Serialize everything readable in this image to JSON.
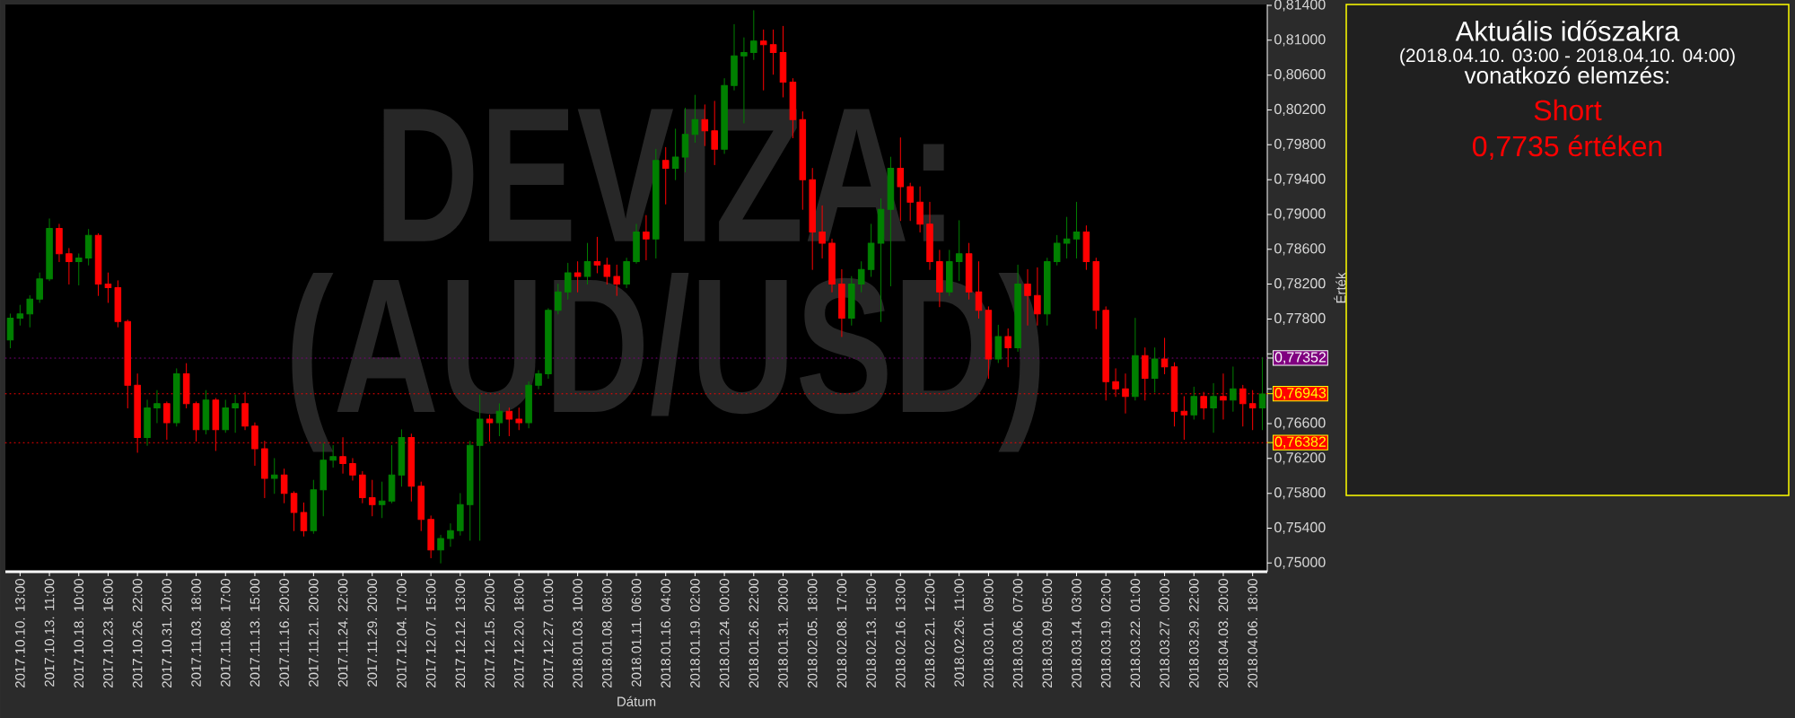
{
  "chart_data": [
    {
      "type": "candlestick",
      "title": "DEVIZA: (AUD/USD)",
      "xlabel": "Dátum",
      "ylabel": "Érték",
      "categories": [
        null,
        "2017.10.10. 13:00",
        null,
        null,
        "2017.10.13. 11:00",
        null,
        null,
        "2017.10.18. 10:00",
        null,
        null,
        "2017.10.23. 16:00",
        null,
        null,
        "2017.10.26. 22:00",
        null,
        null,
        "2017.10.31. 20:00",
        null,
        null,
        "2017.11.03. 18:00",
        null,
        null,
        "2017.11.08. 17:00",
        null,
        null,
        "2017.11.13. 15:00",
        null,
        null,
        "2017.11.16. 20:00",
        null,
        null,
        "2017.11.21. 20:00",
        null,
        null,
        "2017.11.24. 22:00",
        null,
        null,
        "2017.11.29. 20:00",
        null,
        null,
        "2017.12.04. 17:00",
        null,
        null,
        "2017.12.07. 15:00",
        null,
        null,
        "2017.12.12. 13:00",
        null,
        null,
        "2017.12.15. 20:00",
        null,
        null,
        "2017.12.20. 18:00",
        null,
        null,
        "2017.12.27. 01:00",
        null,
        null,
        "2018.01.03. 10:00",
        null,
        null,
        "2018.01.08. 08:00",
        null,
        null,
        "2018.01.11. 06:00",
        null,
        null,
        "2018.01.16. 04:00",
        null,
        null,
        "2018.01.19. 02:00",
        null,
        null,
        "2018.01.24. 00:00",
        null,
        null,
        "2018.01.26. 22:00",
        null,
        null,
        "2018.01.31. 20:00",
        null,
        null,
        "2018.02.05. 18:00",
        null,
        null,
        "2018.02.08. 17:00",
        null,
        null,
        "2018.02.13. 15:00",
        null,
        null,
        "2018.02.16. 13:00",
        null,
        null,
        "2018.02.21. 12:00",
        null,
        null,
        "2018.02.26. 11:00",
        null,
        null,
        "2018.03.01. 09:00",
        null,
        null,
        "2018.03.06. 07:00",
        null,
        null,
        "2018.03.09. 05:00",
        null,
        null,
        "2018.03.14. 03:00",
        null,
        null,
        "2018.03.19. 02:00",
        null,
        null,
        "2018.03.22. 01:00",
        null,
        null,
        "2018.03.27. 00:00",
        null,
        null,
        "2018.03.29. 22:00",
        null,
        null,
        "2018.04.03. 20:00",
        null,
        null,
        "2018.04.06. 18:00",
        null
      ],
      "ohlc": [
        [
          0.7756,
          0.7786,
          0.7747,
          0.7781
        ],
        [
          0.7781,
          0.7796,
          0.7773,
          0.7786
        ],
        [
          0.7786,
          0.7807,
          0.7771,
          0.7803
        ],
        [
          0.7803,
          0.7833,
          0.7799,
          0.7826
        ],
        [
          0.7826,
          0.7895,
          0.7824,
          0.7884
        ],
        [
          0.7884,
          0.7889,
          0.7846,
          0.7855
        ],
        [
          0.7855,
          0.7861,
          0.782,
          0.7846
        ],
        [
          0.7846,
          0.7855,
          0.7819,
          0.785
        ],
        [
          0.785,
          0.7883,
          0.7842,
          0.7876
        ],
        [
          0.7876,
          0.7878,
          0.7807,
          0.782
        ],
        [
          0.782,
          0.7833,
          0.7799,
          0.7816
        ],
        [
          0.7816,
          0.7824,
          0.7771,
          0.7777
        ],
        [
          0.7777,
          0.7779,
          0.7678,
          0.7704
        ],
        [
          0.7704,
          0.7717,
          0.7627,
          0.7644
        ],
        [
          0.7644,
          0.7687,
          0.7635,
          0.7678
        ],
        [
          0.7678,
          0.7698,
          0.7661,
          0.7683
        ],
        [
          0.7683,
          0.7685,
          0.7642,
          0.7661
        ],
        [
          0.7661,
          0.7723,
          0.7657,
          0.7717
        ],
        [
          0.7717,
          0.7729,
          0.7678,
          0.7683
        ],
        [
          0.7683,
          0.7685,
          0.764,
          0.7653
        ],
        [
          0.7653,
          0.7698,
          0.7648,
          0.7687
        ],
        [
          0.7687,
          0.7689,
          0.7629,
          0.7653
        ],
        [
          0.7653,
          0.7687,
          0.765,
          0.7678
        ],
        [
          0.7678,
          0.7693,
          0.765,
          0.7683
        ],
        [
          0.7683,
          0.7696,
          0.7653,
          0.7657
        ],
        [
          0.7657,
          0.7661,
          0.7612,
          0.7631
        ],
        [
          0.7631,
          0.764,
          0.7575,
          0.7597
        ],
        [
          0.7597,
          0.762,
          0.758,
          0.7601
        ],
        [
          0.7601,
          0.7608,
          0.7569,
          0.758
        ],
        [
          0.758,
          0.7582,
          0.7537,
          0.7558
        ],
        [
          0.7558,
          0.7569,
          0.7531,
          0.7537
        ],
        [
          0.7537,
          0.7595,
          0.7534,
          0.7584
        ],
        [
          0.7584,
          0.7637,
          0.7554,
          0.7618
        ],
        [
          0.7618,
          0.7635,
          0.761,
          0.7622
        ],
        [
          0.7622,
          0.7644,
          0.7603,
          0.7614
        ],
        [
          0.7614,
          0.762,
          0.7595,
          0.7601
        ],
        [
          0.7601,
          0.7605,
          0.7569,
          0.7575
        ],
        [
          0.7575,
          0.7595,
          0.7554,
          0.7567
        ],
        [
          0.7567,
          0.7593,
          0.7552,
          0.7571
        ],
        [
          0.7571,
          0.7635,
          0.7569,
          0.7601
        ],
        [
          0.7601,
          0.7653,
          0.7588,
          0.7644
        ],
        [
          0.7644,
          0.7648,
          0.7571,
          0.7588
        ],
        [
          0.7588,
          0.7593,
          0.7537,
          0.755
        ],
        [
          0.755,
          0.7554,
          0.7506,
          0.7515
        ],
        [
          0.7515,
          0.7532,
          0.75,
          0.7528
        ],
        [
          0.7528,
          0.7545,
          0.7519,
          0.7537
        ],
        [
          0.7537,
          0.758,
          0.7532,
          0.7567
        ],
        [
          0.7567,
          0.764,
          0.7526,
          0.7635
        ],
        [
          0.7635,
          0.7693,
          0.7526,
          0.7665
        ],
        [
          0.7665,
          0.767,
          0.764,
          0.7661
        ],
        [
          0.7661,
          0.7683,
          0.7646,
          0.7674
        ],
        [
          0.7674,
          0.7678,
          0.7646,
          0.7665
        ],
        [
          0.7665,
          0.7678,
          0.7653,
          0.7661
        ],
        [
          0.7661,
          0.7708,
          0.7655,
          0.7704
        ],
        [
          0.7704,
          0.7721,
          0.77,
          0.7717
        ],
        [
          0.7717,
          0.7792,
          0.7712,
          0.779
        ],
        [
          0.779,
          0.782,
          0.7786,
          0.7811
        ],
        [
          0.7811,
          0.7844,
          0.7803,
          0.7833
        ],
        [
          0.7833,
          0.7846,
          0.7811,
          0.7829
        ],
        [
          0.7829,
          0.7867,
          0.782,
          0.7846
        ],
        [
          0.7846,
          0.7874,
          0.7833,
          0.7842
        ],
        [
          0.7842,
          0.785,
          0.782,
          0.7829
        ],
        [
          0.7829,
          0.7842,
          0.7807,
          0.782
        ],
        [
          0.782,
          0.785,
          0.7816,
          0.7846
        ],
        [
          0.7846,
          0.7889,
          0.7844,
          0.788
        ],
        [
          0.788,
          0.7899,
          0.7848,
          0.7872
        ],
        [
          0.7872,
          0.7975,
          0.785,
          0.7962
        ],
        [
          0.7962,
          0.7977,
          0.7912,
          0.7953
        ],
        [
          0.7953,
          0.7998,
          0.794,
          0.7966
        ],
        [
          0.7966,
          0.8022,
          0.7949,
          0.7992
        ],
        [
          0.7992,
          0.8037,
          0.7983,
          0.8009
        ],
        [
          0.8009,
          0.8026,
          0.7979,
          0.7996
        ],
        [
          0.7996,
          0.803,
          0.7957,
          0.7975
        ],
        [
          0.7975,
          0.8056,
          0.797,
          0.8048
        ],
        [
          0.8048,
          0.8118,
          0.8043,
          0.8082
        ],
        [
          0.8082,
          0.8103,
          0.8005,
          0.8086
        ],
        [
          0.8086,
          0.8134,
          0.8078,
          0.8099
        ],
        [
          0.8099,
          0.8112,
          0.8043,
          0.8095
        ],
        [
          0.8095,
          0.8112,
          0.8061,
          0.8086
        ],
        [
          0.8086,
          0.8116,
          0.8035,
          0.8052
        ],
        [
          0.8052,
          0.8056,
          0.7988,
          0.8009
        ],
        [
          0.8009,
          0.8018,
          0.7906,
          0.794
        ],
        [
          0.794,
          0.7953,
          0.7837,
          0.788
        ],
        [
          0.788,
          0.791,
          0.785,
          0.7867
        ],
        [
          0.7867,
          0.7872,
          0.7811,
          0.782
        ],
        [
          0.782,
          0.7837,
          0.776,
          0.7781
        ],
        [
          0.7781,
          0.7829,
          0.7773,
          0.782
        ],
        [
          0.782,
          0.7846,
          0.7811,
          0.7837
        ],
        [
          0.7837,
          0.7889,
          0.7829,
          0.7867
        ],
        [
          0.7867,
          0.7918,
          0.7777,
          0.7906
        ],
        [
          0.7906,
          0.7966,
          0.7818,
          0.7953
        ],
        [
          0.7953,
          0.7988,
          0.7893,
          0.7932
        ],
        [
          0.7932,
          0.7936,
          0.7893,
          0.7914
        ],
        [
          0.7914,
          0.7932,
          0.788,
          0.7889
        ],
        [
          0.7889,
          0.7914,
          0.7837,
          0.7846
        ],
        [
          0.7846,
          0.7859,
          0.7794,
          0.7811
        ],
        [
          0.7811,
          0.7859,
          0.7807,
          0.7846
        ],
        [
          0.7846,
          0.7893,
          0.7824,
          0.7855
        ],
        [
          0.7855,
          0.7867,
          0.7803,
          0.7811
        ],
        [
          0.7811,
          0.7846,
          0.7781,
          0.779
        ],
        [
          0.779,
          0.7794,
          0.7712,
          0.7734
        ],
        [
          0.7734,
          0.7773,
          0.773,
          0.776
        ],
        [
          0.776,
          0.7769,
          0.7725,
          0.7747
        ],
        [
          0.7747,
          0.7842,
          0.7743,
          0.782
        ],
        [
          0.782,
          0.7837,
          0.7773,
          0.7807
        ],
        [
          0.7807,
          0.7839,
          0.7773,
          0.7786
        ],
        [
          0.7786,
          0.785,
          0.7773,
          0.7846
        ],
        [
          0.7846,
          0.7876,
          0.7842,
          0.7867
        ],
        [
          0.7867,
          0.7897,
          0.785,
          0.7872
        ],
        [
          0.7872,
          0.7914,
          0.785,
          0.788
        ],
        [
          0.788,
          0.7887,
          0.7837,
          0.7846
        ],
        [
          0.7846,
          0.785,
          0.7769,
          0.779
        ],
        [
          0.779,
          0.7794,
          0.7687,
          0.7708
        ],
        [
          0.7708,
          0.7723,
          0.7691,
          0.77
        ],
        [
          0.77,
          0.7717,
          0.7672,
          0.7691
        ],
        [
          0.7691,
          0.7781,
          0.7687,
          0.7738
        ],
        [
          0.7738,
          0.7747,
          0.7687,
          0.7712
        ],
        [
          0.7712,
          0.7747,
          0.7696,
          0.7734
        ],
        [
          0.7734,
          0.7758,
          0.7717,
          0.7725
        ],
        [
          0.7725,
          0.773,
          0.7657,
          0.7674
        ],
        [
          0.7674,
          0.7691,
          0.7642,
          0.767
        ],
        [
          0.767,
          0.7702,
          0.7665,
          0.7691
        ],
        [
          0.7691,
          0.7696,
          0.7665,
          0.7678
        ],
        [
          0.7678,
          0.7706,
          0.765,
          0.7691
        ],
        [
          0.7691,
          0.7717,
          0.7665,
          0.7687
        ],
        [
          0.7687,
          0.7725,
          0.7674,
          0.77
        ],
        [
          0.77,
          0.7704,
          0.7657,
          0.7683
        ],
        [
          0.7683,
          0.7698,
          0.7653,
          0.7678
        ],
        [
          0.7678,
          0.7736,
          0.7653,
          0.7694
        ]
      ],
      "colors": [
        "#008000",
        "#008000",
        "#008000",
        "#008000",
        "#008000",
        "#ff0000",
        "#ff0000",
        "#008000",
        "#008000",
        "#ff0000",
        "#ff0000",
        "#ff0000",
        "#ff0000",
        "#ff0000",
        "#008000",
        "#008000",
        "#ff0000",
        "#008000",
        "#ff0000",
        "#ff0000",
        "#008000",
        "#ff0000",
        "#008000",
        "#008000",
        "#ff0000",
        "#ff0000",
        "#ff0000",
        "#008000",
        "#ff0000",
        "#ff0000",
        "#ff0000",
        "#008000",
        "#008000",
        "#008000",
        "#ff0000",
        "#ff0000",
        "#ff0000",
        "#ff0000",
        "#008000",
        "#008000",
        "#008000",
        "#ff0000",
        "#ff0000",
        "#ff0000",
        "#008000",
        "#008000",
        "#008000",
        "#008000",
        "#008000",
        "#ff0000",
        "#008000",
        "#ff0000",
        "#ff0000",
        "#008000",
        "#008000",
        "#008000",
        "#008000",
        "#008000",
        "#ff0000",
        "#008000",
        "#ff0000",
        "#ff0000",
        "#ff0000",
        "#008000",
        "#008000",
        "#ff0000",
        "#008000",
        "#ff0000",
        "#008000",
        "#008000",
        "#008000",
        "#ff0000",
        "#ff0000",
        "#008000",
        "#008000",
        "#008000",
        "#008000",
        "#ff0000",
        "#ff0000",
        "#ff0000",
        "#ff0000",
        "#ff0000",
        "#ff0000",
        "#ff0000",
        "#ff0000",
        "#ff0000",
        "#008000",
        "#008000",
        "#008000",
        "#008000",
        "#008000",
        "#ff0000",
        "#ff0000",
        "#ff0000",
        "#ff0000",
        "#ff0000",
        "#008000",
        "#008000",
        "#ff0000",
        "#ff0000",
        "#ff0000",
        "#008000",
        "#ff0000",
        "#008000",
        "#ff0000",
        "#ff0000",
        "#008000",
        "#008000",
        "#008000",
        "#008000",
        "#ff0000",
        "#ff0000",
        "#ff0000",
        "#ff0000",
        "#ff0000",
        "#008000",
        "#ff0000",
        "#008000",
        "#ff0000",
        "#ff0000",
        "#ff0000",
        "#008000",
        "#ff0000",
        "#008000",
        "#ff0000",
        "#008000",
        "#ff0000",
        "#ff0000",
        "#008000"
      ],
      "ylim": [
        0.749,
        0.8141
      ],
      "yticks": [
        {
          "value": 0.75,
          "label": "0,75000"
        },
        {
          "value": 0.754,
          "label": "0,75400"
        },
        {
          "value": 0.758,
          "label": "0,75800"
        },
        {
          "value": 0.762,
          "label": "0,76200"
        },
        {
          "value": 0.766,
          "label": "0,76600"
        },
        {
          "value": 0.77,
          "label": null
        },
        {
          "value": 0.774,
          "label": null
        },
        {
          "value": 0.778,
          "label": "0,77800"
        },
        {
          "value": 0.782,
          "label": "0,78200"
        },
        {
          "value": 0.786,
          "label": "0,78600"
        },
        {
          "value": 0.79,
          "label": "0,79000"
        },
        {
          "value": 0.794,
          "label": "0,79400"
        },
        {
          "value": 0.798,
          "label": "0,79800"
        },
        {
          "value": 0.802,
          "label": "0,80200"
        },
        {
          "value": 0.806,
          "label": "0,80600"
        },
        {
          "value": 0.81,
          "label": "0,81000"
        },
        {
          "value": 0.814,
          "label": "0,81400"
        }
      ],
      "ref_lines": [
        {
          "axis": "y",
          "value": 0.77352,
          "label": "0,77352",
          "color": "#800080",
          "line_style": "dotted"
        },
        {
          "axis": "y",
          "value": 0.76943,
          "label": "0,76943",
          "color": "#ff0000",
          "line_style": "dotted"
        },
        {
          "axis": "y",
          "value": 0.76382,
          "label": "0,76382",
          "color": "#ff0000",
          "line_style": "dotted"
        }
      ]
    },
    {
      "type": "other",
      "title": "Aktuális időszakra",
      "subtitle": "(2018.04.10. 03:00 - 2018.04.10. 04:00)",
      "annotations": [
        "vonatkozó elemzés:",
        "Short",
        "0,7735  értéken"
      ]
    }
  ]
}
